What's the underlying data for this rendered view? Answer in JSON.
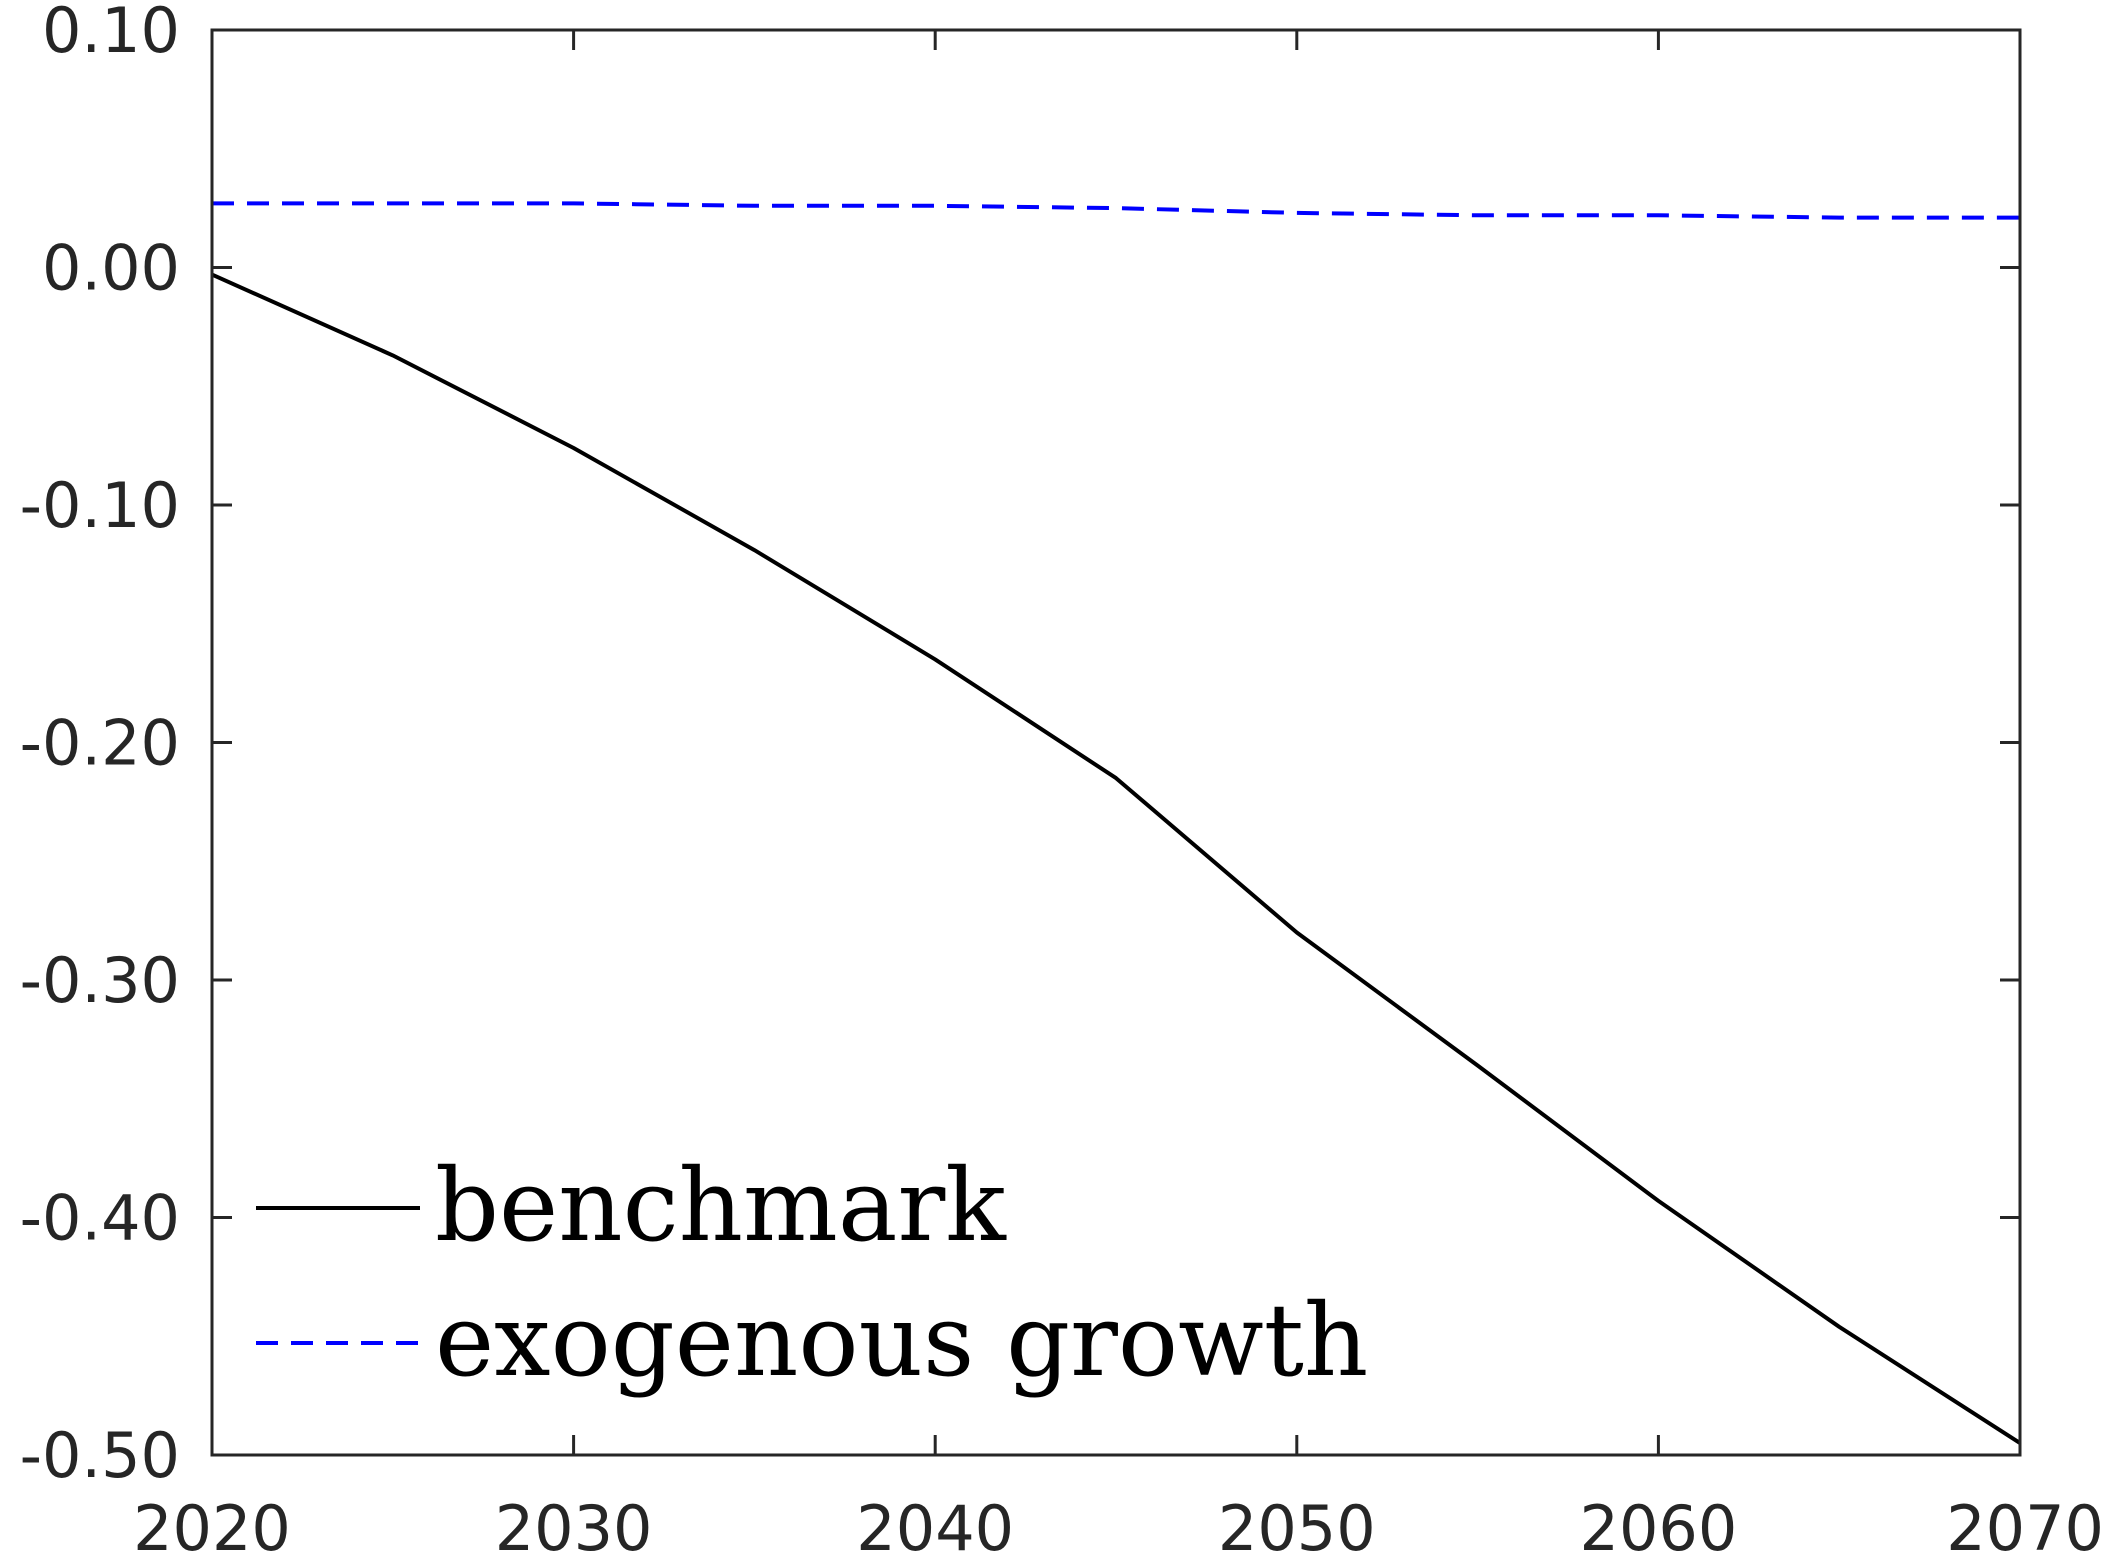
{
  "chart_data": {
    "type": "line",
    "title": "",
    "xlabel": "",
    "ylabel": "",
    "xlim": [
      2020,
      2070
    ],
    "ylim": [
      -0.5,
      0.1
    ],
    "xticks": [
      2020,
      2030,
      2040,
      2050,
      2060,
      2070
    ],
    "xtick_labels": [
      "2020",
      "2030",
      "2040",
      "2050",
      "2060",
      "2070"
    ],
    "yticks": [
      0.1,
      0.0,
      -0.1,
      -0.2,
      -0.3,
      -0.4,
      -0.5
    ],
    "ytick_labels": [
      "0.10",
      "0.00",
      "-0.10",
      "-0.20",
      "-0.30",
      "-0.40",
      "-0.50"
    ],
    "grid": false,
    "legend_position": "bottom-left",
    "series": [
      {
        "name": "benchmark",
        "color": "#000000",
        "line_style": "solid",
        "x": [
          2020,
          2025,
          2030,
          2035,
          2040,
          2045,
          2050,
          2055,
          2060,
          2065,
          2070
        ],
        "y": [
          -0.003,
          -0.037,
          -0.076,
          -0.119,
          -0.165,
          -0.215,
          -0.28,
          -0.336,
          -0.393,
          -0.446,
          -0.495
        ]
      },
      {
        "name": "exogenous growth",
        "color": "#0000ff",
        "line_style": "dashed",
        "x": [
          2020,
          2025,
          2030,
          2035,
          2040,
          2045,
          2050,
          2055,
          2060,
          2065,
          2070
        ],
        "y": [
          0.027,
          0.027,
          0.027,
          0.026,
          0.026,
          0.025,
          0.023,
          0.022,
          0.022,
          0.021,
          0.021
        ]
      }
    ]
  }
}
